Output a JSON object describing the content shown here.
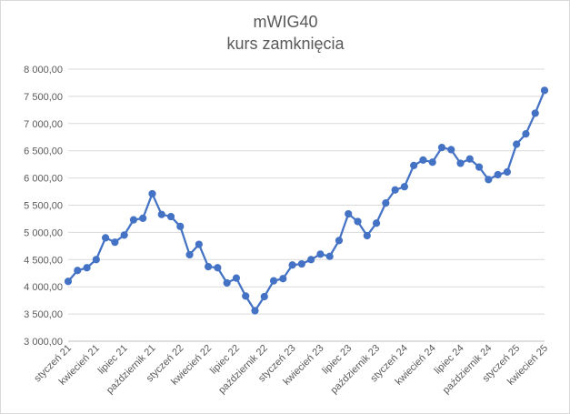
{
  "chart_data": {
    "type": "line",
    "title": "mWIG40",
    "subtitle": "kurs zamknięcia",
    "xlabel": "",
    "ylabel": "",
    "ylim": [
      3000,
      8000
    ],
    "y_ticks": [
      3000,
      3500,
      4000,
      4500,
      5000,
      5500,
      6000,
      6500,
      7000,
      7500,
      8000
    ],
    "y_tick_labels": [
      "3 000,00",
      "3 500,00",
      "4 000,00",
      "4 500,00",
      "5 000,00",
      "5 500,00",
      "6 000,00",
      "6 500,00",
      "7 000,00",
      "7 500,00",
      "8 000,00"
    ],
    "x_tick_labels": [
      "styczeń 21",
      "kwiecień 21",
      "lipiec 21",
      "październik 21",
      "styczeń 22",
      "kwiecień 22",
      "lipiec 22",
      "październik 22",
      "styczeń 23",
      "kwiecień 23",
      "lipiec 23",
      "październik 23",
      "styczeń 24",
      "kwiecień 24",
      "lipiec 24",
      "październik 24",
      "styczeń 25",
      "kwiecień 25"
    ],
    "grid": "horizontal",
    "legend": "none",
    "color": "#4472c4",
    "series": [
      {
        "values": [
          4100,
          4300,
          4350,
          4500,
          4900,
          4820,
          4950,
          5230,
          5260,
          5710,
          5330,
          5290,
          5110,
          4590,
          4780,
          4370,
          4350,
          4070,
          4160,
          3830,
          3560,
          3820,
          4110,
          4150,
          4400,
          4420,
          4500,
          4600,
          4560,
          4850,
          5340,
          5200,
          4940,
          5170,
          5540,
          5780,
          5840,
          6230,
          6330,
          6290,
          6560,
          6520,
          6270,
          6350,
          6200,
          5970,
          6060,
          6110,
          6620,
          6810,
          7190,
          7610
        ]
      }
    ]
  }
}
